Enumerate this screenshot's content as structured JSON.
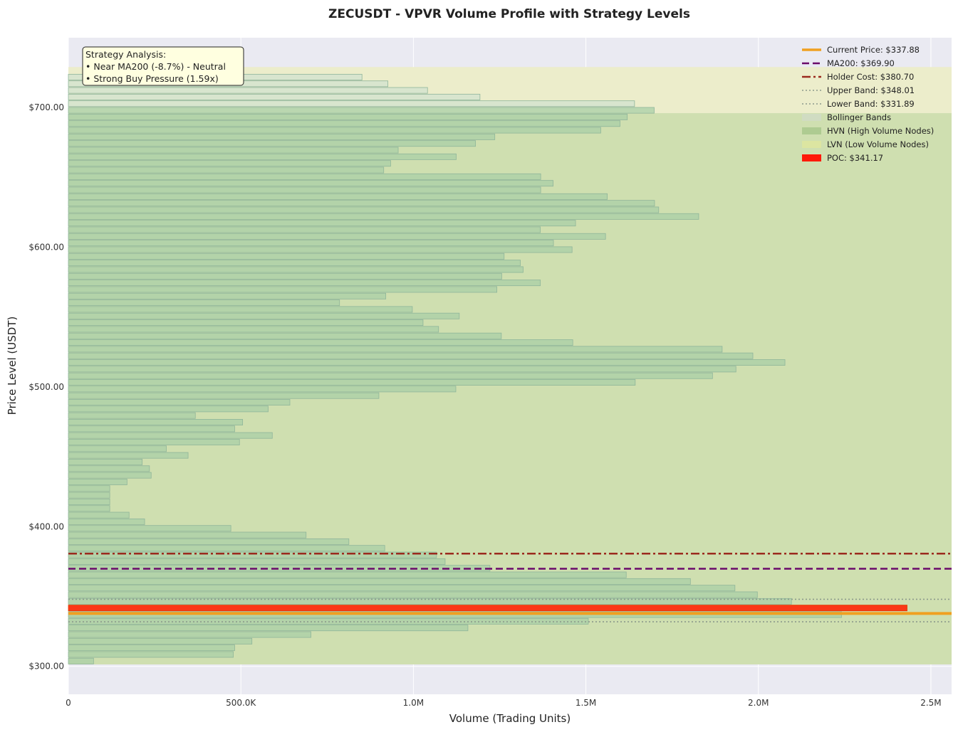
{
  "chart_data": {
    "type": "bar",
    "orientation": "horizontal",
    "title": "ZECUSDT - VPVR Volume Profile with Strategy Levels",
    "xlabel": "Volume (Trading Units)",
    "ylabel": "Price Level (USDT)",
    "xlim": [
      0,
      2560000
    ],
    "ylim": [
      280,
      750
    ],
    "x_ticks": [
      {
        "value": 0,
        "label": "0"
      },
      {
        "value": 500000,
        "label": "500.0K"
      },
      {
        "value": 1000000,
        "label": "1.0M"
      },
      {
        "value": 1500000,
        "label": "1.5M"
      },
      {
        "value": 2000000,
        "label": "2.0M"
      },
      {
        "value": 2500000,
        "label": "2.5M"
      }
    ],
    "y_ticks": [
      {
        "value": 300,
        "label": "$300.00"
      },
      {
        "value": 400,
        "label": "$400.00"
      },
      {
        "value": 500,
        "label": "$500.00"
      },
      {
        "value": 600,
        "label": "$600.00"
      },
      {
        "value": 700,
        "label": "$700.00"
      }
    ],
    "grid": true,
    "legend_position": "top-right",
    "bin_size": 4.75,
    "price_min": 301.4,
    "poc_price": 341.17,
    "volumes": [
      73000,
      478000,
      482000,
      532000,
      703000,
      1158000,
      1507000,
      2241000,
      2431000,
      2096000,
      1997000,
      1932000,
      1803000,
      1617000,
      1222000,
      1092000,
      1067000,
      917000,
      813000,
      689000,
      471000,
      221000,
      176000,
      120000,
      120000,
      120000,
      120000,
      170000,
      240000,
      235000,
      214000,
      347000,
      284000,
      496000,
      591000,
      482000,
      505000,
      368000,
      579000,
      642000,
      900000,
      1123000,
      1643000,
      1867000,
      1935000,
      2077000,
      1984000,
      1895000,
      1462000,
      1255000,
      1073000,
      1028000,
      1133000,
      997000,
      786000,
      920000,
      1242000,
      1368000,
      1256000,
      1318000,
      1310000,
      1263000,
      1460000,
      1406000,
      1557000,
      1368000,
      1470000,
      1827000,
      1711000,
      1699000,
      1562000,
      1369000,
      1405000,
      1369000,
      914000,
      934000,
      1124000,
      956000,
      1180000,
      1236000,
      1543000,
      1599000,
      1620000,
      1698000,
      1641000,
      1193000,
      1041000,
      926000,
      851000,
      0,
      0,
      0,
      0,
      0,
      0,
      0,
      0
    ],
    "levels": [
      {
        "name": "Current Price: $337.88",
        "value": 337.88,
        "color": "#f0a020",
        "style": "solid"
      },
      {
        "name": "MA200: $369.90",
        "value": 369.9,
        "color": "#6a0a6a",
        "style": "dashed"
      },
      {
        "name": "Holder Cost: $380.70",
        "value": 380.7,
        "color": "#9b2a1e",
        "style": "dashdot"
      },
      {
        "name": "Upper Band: $348.01",
        "value": 348.01,
        "color": "#8c9a8c",
        "style": "dotted"
      },
      {
        "name": "Lower Band: $331.89",
        "value": 331.89,
        "color": "#8c9a8c",
        "style": "dotted"
      }
    ],
    "zones": {
      "lvn": [
        301.4,
        729
      ],
      "hvn": [
        301.4,
        696
      ]
    },
    "legend": [
      {
        "label": "Current Price: $337.88",
        "type": "solid",
        "color": "#f0a020"
      },
      {
        "label": "MA200: $369.90",
        "type": "dashed",
        "color": "#6a0a6a"
      },
      {
        "label": "Holder Cost: $380.70",
        "type": "dashdot",
        "color": "#9b2a1e"
      },
      {
        "label": "Upper Band: $348.01",
        "type": "dotted",
        "color": "#8c9a8c"
      },
      {
        "label": "Lower Band: $331.89",
        "type": "dotted",
        "color": "#8c9a8c"
      },
      {
        "label": "Bollinger Bands",
        "type": "patch",
        "color": "#cfdcc4"
      },
      {
        "label": "HVN (High Volume Nodes)",
        "type": "patch",
        "color": "#aac98e"
      },
      {
        "label": "LVN (Low Volume Nodes)",
        "type": "patch",
        "color": "#dde6a0"
      },
      {
        "label": "POC: $341.17",
        "type": "patch",
        "color": "#ff1a0a"
      }
    ],
    "annotation": {
      "lines": [
        "Strategy Analysis:",
        "• Near MA200 (-8.7%) - Neutral",
        "• Strong Buy Pressure (1.59x)"
      ]
    }
  }
}
